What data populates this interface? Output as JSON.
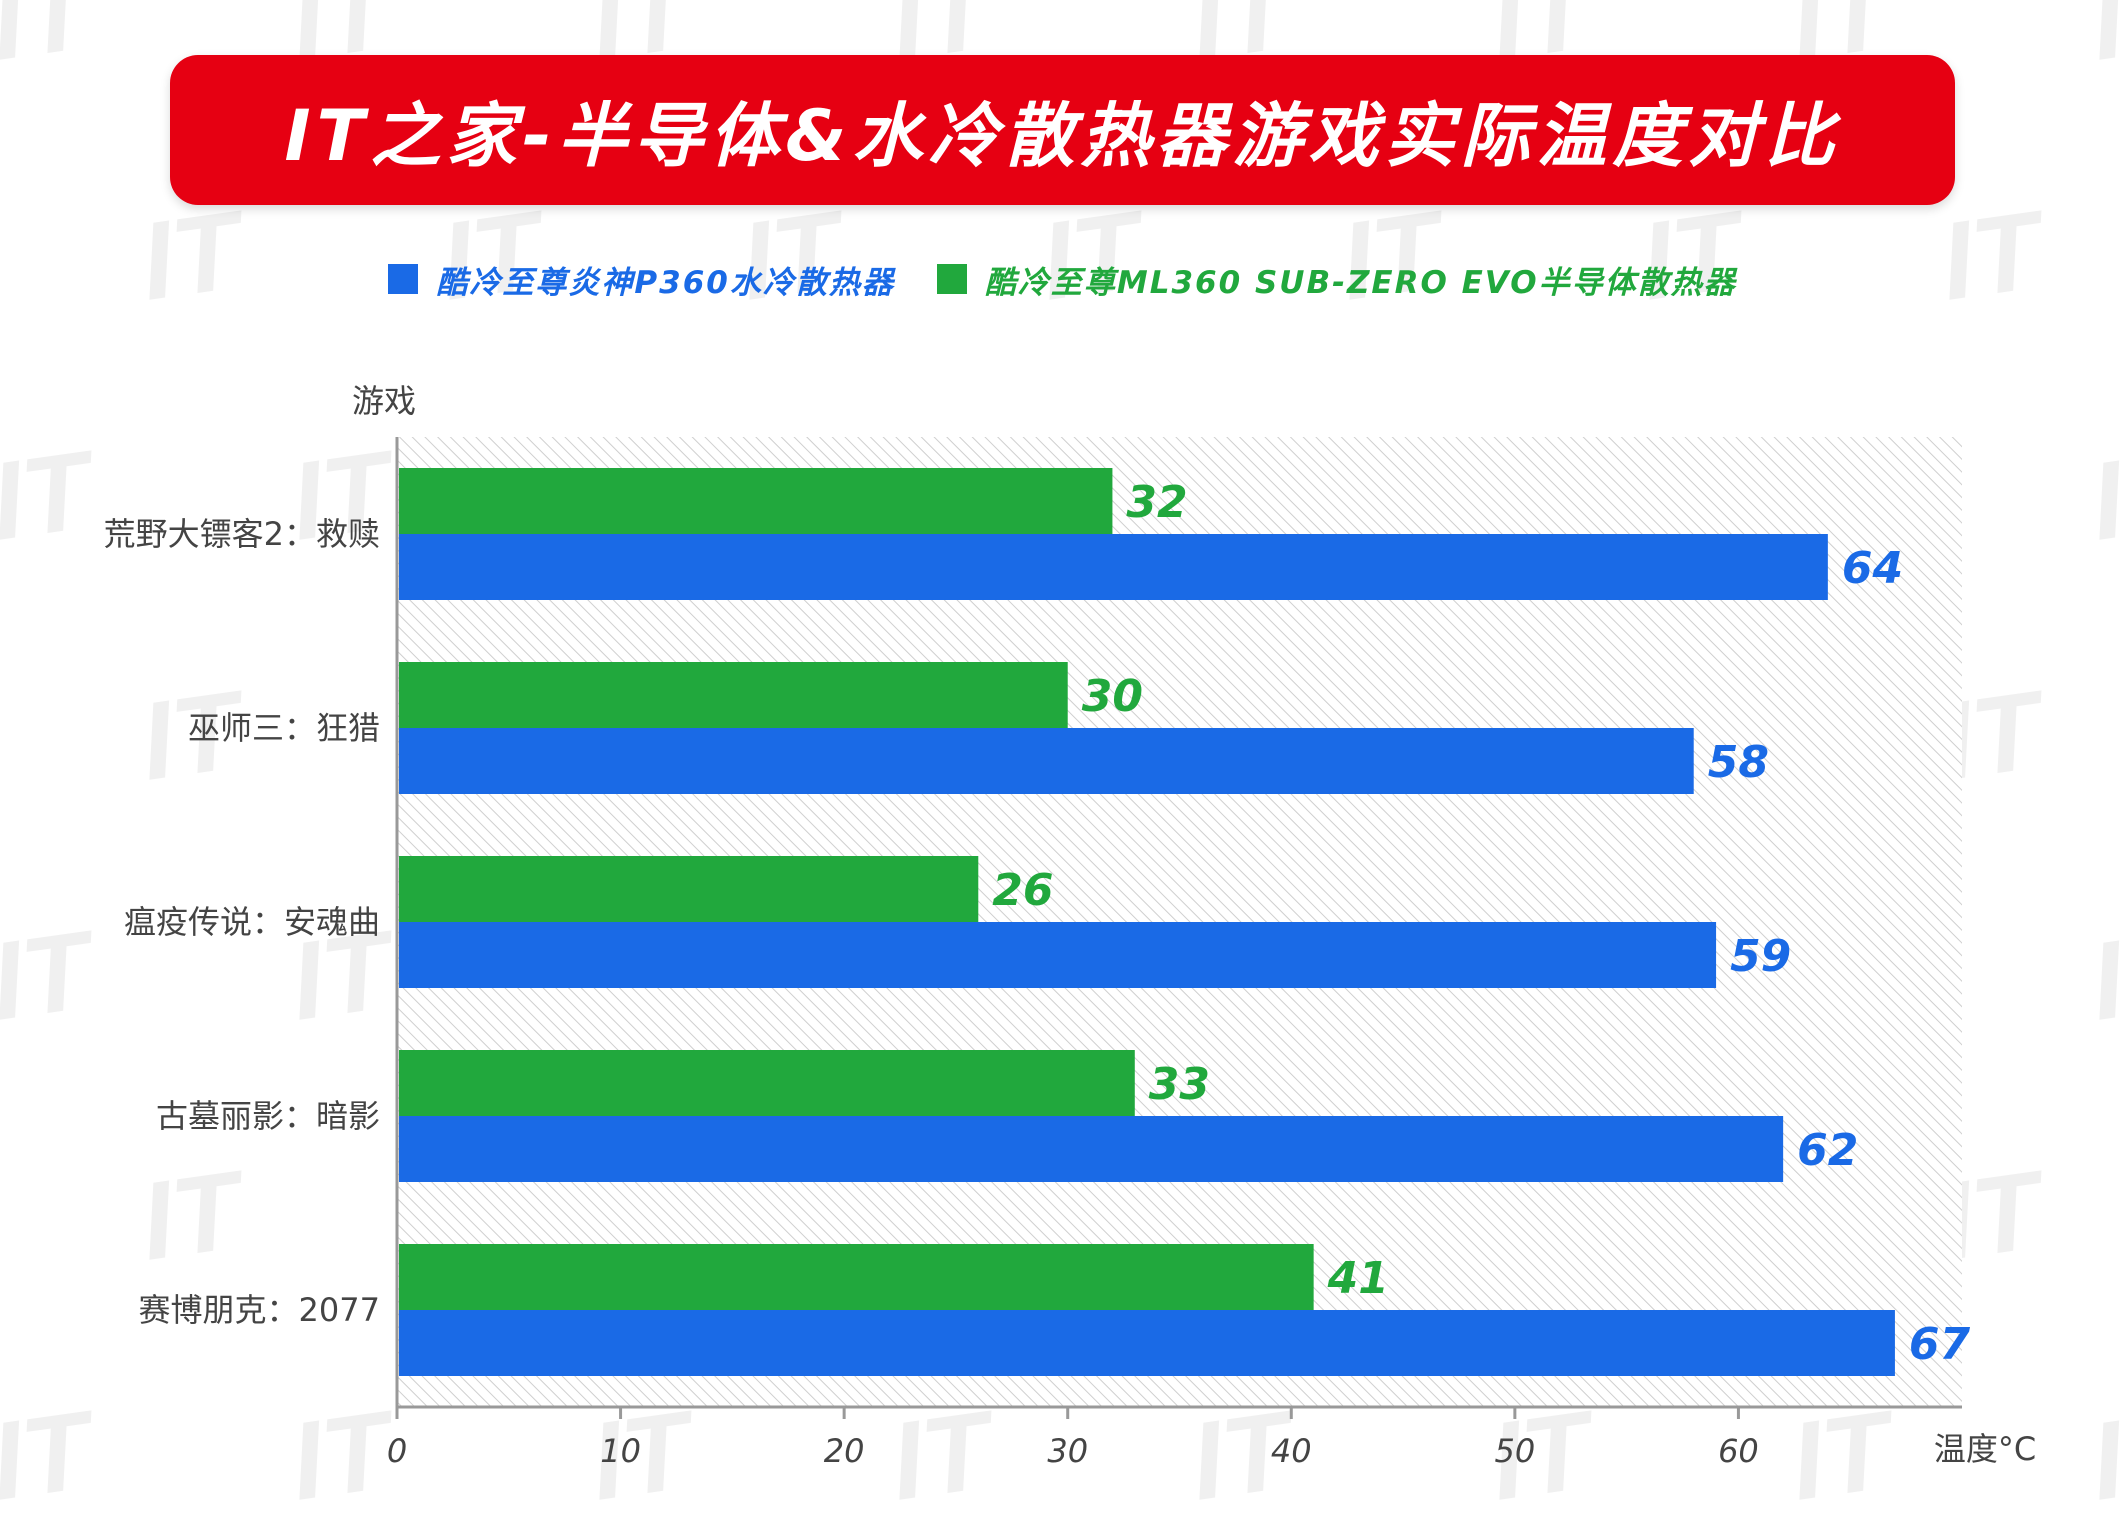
{
  "title": "IT之家-半导体&水冷散热器游戏实际温度对比",
  "colors": {
    "title_bg": "#e60012",
    "water": "#1a6ae6",
    "semi": "#21a83d",
    "axis": "#999999",
    "label": "#444444"
  },
  "chart_data": {
    "type": "bar",
    "orientation": "horizontal",
    "ylabel": "游戏",
    "xlabel": "温度°C",
    "xlim": [
      0,
      70
    ],
    "xticks": [
      0,
      10,
      20,
      30,
      40,
      50,
      60
    ],
    "categories": [
      "荒野大镖客2：救赎",
      "巫师三：狂猎",
      "瘟疫传说：安魂曲",
      "古墓丽影：暗影",
      "赛博朋克：2077"
    ],
    "series": [
      {
        "name": "酷冷至尊ML360 SUB-ZERO EVO半导体散热器",
        "color": "#21a83d",
        "values": [
          32,
          30,
          26,
          33,
          41
        ]
      },
      {
        "name": "酷冷至尊炎神P360水冷散热器",
        "color": "#1a6ae6",
        "values": [
          64,
          58,
          59,
          62,
          67
        ]
      }
    ],
    "legend_position": "top-center",
    "background": "hatched"
  }
}
